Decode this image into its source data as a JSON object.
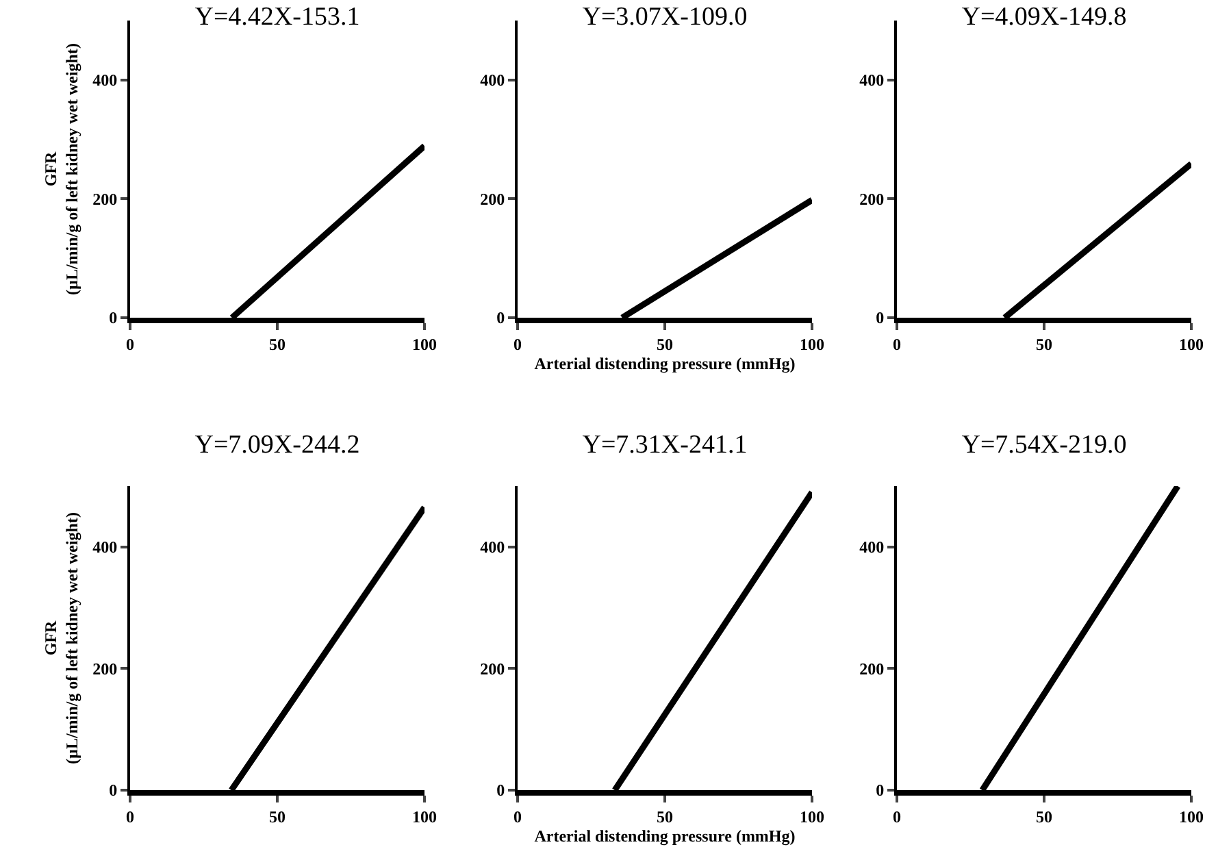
{
  "chart_data": [
    {
      "type": "line",
      "title": "Y=4.42X-153.1",
      "ylabel": "GFR\n(µL/min/g of left kidney wet weight)",
      "x": [
        34.6,
        100
      ],
      "series": [
        {
          "color": "#000000",
          "values": [
            0,
            289
          ]
        }
      ],
      "xlim": [
        0,
        100
      ],
      "xticks": [
        0,
        50,
        100
      ],
      "ylim": [
        0,
        500
      ],
      "yticks": [
        0,
        200,
        400
      ],
      "grid": false,
      "marker": "none",
      "line_style": "solid"
    },
    {
      "type": "line",
      "title": "Y=3.07X-109.0",
      "xlabel": "Arterial distending pressure (mmHg)",
      "x": [
        35.5,
        100
      ],
      "series": [
        {
          "color": "#000000",
          "values": [
            0,
            198
          ]
        }
      ],
      "xlim": [
        0,
        100
      ],
      "xticks": [
        0,
        50,
        100
      ],
      "ylim": [
        0,
        500
      ],
      "yticks": [
        0,
        200,
        400
      ],
      "grid": false,
      "marker": "none",
      "line_style": "solid"
    },
    {
      "type": "line",
      "title": "Y=4.09X-149.8",
      "x": [
        36.6,
        100
      ],
      "series": [
        {
          "color": "#000000",
          "values": [
            0,
            259
          ]
        }
      ],
      "xlim": [
        0,
        100
      ],
      "xticks": [
        0,
        50,
        100
      ],
      "ylim": [
        0,
        500
      ],
      "yticks": [
        0,
        200,
        400
      ],
      "grid": false,
      "marker": "none",
      "line_style": "solid"
    },
    {
      "type": "line",
      "title": "Y=7.09X-244.2",
      "ylabel": "GFR\n(µL/min/g of left kidney wet weight)",
      "x": [
        34.4,
        100
      ],
      "series": [
        {
          "color": "#000000",
          "values": [
            0,
            465
          ]
        }
      ],
      "xlim": [
        0,
        100
      ],
      "xticks": [
        0,
        50,
        100
      ],
      "ylim": [
        0,
        500
      ],
      "yticks": [
        0,
        200,
        400
      ],
      "grid": false,
      "marker": "none",
      "line_style": "solid"
    },
    {
      "type": "line",
      "title": "Y=7.31X-241.1",
      "xlabel": "Arterial distending pressure (mmHg)",
      "x": [
        33,
        100
      ],
      "series": [
        {
          "color": "#000000",
          "values": [
            0,
            490
          ]
        }
      ],
      "xlim": [
        0,
        100
      ],
      "xticks": [
        0,
        50,
        100
      ],
      "ylim": [
        0,
        500
      ],
      "yticks": [
        0,
        200,
        400
      ],
      "grid": false,
      "marker": "none",
      "line_style": "solid"
    },
    {
      "type": "line",
      "title": "Y=7.54X-219.0",
      "x": [
        29,
        95.4
      ],
      "series": [
        {
          "color": "#000000",
          "values": [
            0,
            500
          ]
        }
      ],
      "xlim": [
        0,
        100
      ],
      "xticks": [
        0,
        50,
        100
      ],
      "ylim": [
        0,
        500
      ],
      "yticks": [
        0,
        200,
        400
      ],
      "grid": false,
      "marker": "none",
      "line_style": "solid"
    }
  ]
}
